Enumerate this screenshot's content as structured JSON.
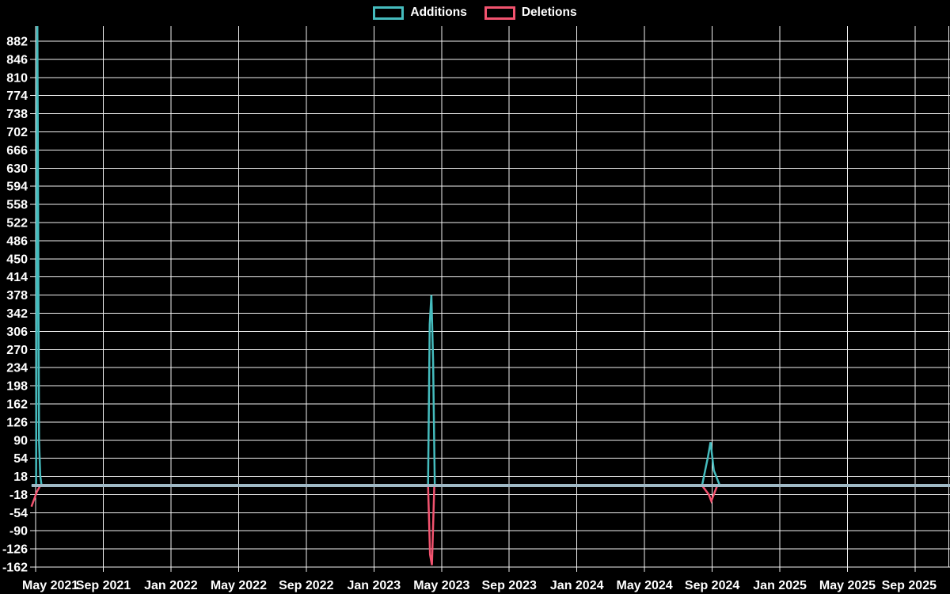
{
  "legend": {
    "items": [
      {
        "label": "Additions",
        "color": "#45bcbe"
      },
      {
        "label": "Deletions",
        "color": "#f2536f"
      }
    ]
  },
  "chart_data": {
    "type": "line",
    "title": "",
    "xlabel": "",
    "ylabel": "",
    "background": "#000000",
    "text_color": "#ffffff",
    "grid_color": "#f2f2f2",
    "zero_line_color": "#9fb9c5",
    "grid": true,
    "legend_position": "top-center",
    "x_axis": {
      "tick_labels": [
        "May 2021",
        "Sep 2021",
        "Jan 2022",
        "May 2022",
        "Sep 2022",
        "Jan 2023",
        "May 2023",
        "Sep 2023",
        "Jan 2024",
        "May 2024",
        "Sep 2024",
        "Jan 2025",
        "May 2025",
        "Sep 2025"
      ],
      "tick_months": [
        0,
        4,
        8,
        12,
        16,
        20,
        24,
        28,
        32,
        36,
        40,
        44,
        48,
        52
      ]
    },
    "y_axis": {
      "ticks": [
        882,
        846,
        810,
        774,
        738,
        702,
        666,
        630,
        594,
        558,
        522,
        486,
        450,
        414,
        378,
        342,
        306,
        270,
        234,
        198,
        162,
        126,
        90,
        54,
        18,
        -18,
        -54,
        -90,
        -126,
        -162
      ]
    },
    "x_domain_months": [
      -0.25,
      54.2
    ],
    "y_domain": [
      -162,
      912
    ],
    "series": [
      {
        "name": "Additions",
        "color": "#45bcbe",
        "points": [
          [
            -0.25,
            0
          ],
          [
            0.03,
            0
          ],
          [
            0.1,
            960
          ],
          [
            0.2,
            90
          ],
          [
            0.27,
            20
          ],
          [
            0.35,
            0
          ],
          [
            23.2,
            0
          ],
          [
            23.3,
            320
          ],
          [
            23.4,
            378
          ],
          [
            23.5,
            245
          ],
          [
            23.6,
            0
          ],
          [
            39.4,
            0
          ],
          [
            39.75,
            57
          ],
          [
            39.9,
            86
          ],
          [
            40.1,
            30
          ],
          [
            40.45,
            0
          ],
          [
            54.2,
            0
          ]
        ]
      },
      {
        "name": "Deletions",
        "color": "#f2536f",
        "points": [
          [
            -0.25,
            -42
          ],
          [
            0.08,
            -12
          ],
          [
            0.28,
            0
          ],
          [
            23.2,
            0
          ],
          [
            23.32,
            -137
          ],
          [
            23.43,
            -158
          ],
          [
            23.57,
            0
          ],
          [
            39.4,
            0
          ],
          [
            39.8,
            -18
          ],
          [
            39.95,
            -31
          ],
          [
            40.3,
            0
          ],
          [
            54.2,
            0
          ]
        ]
      }
    ],
    "notes": "Spikes: May 2021 additions clipped above 912 (off-chart) with deletions -42; late Apr/May 2023 additions peak 378, deletions -158; Sep 2024 additions peak 86, deletions -31. All other weeks 0."
  }
}
